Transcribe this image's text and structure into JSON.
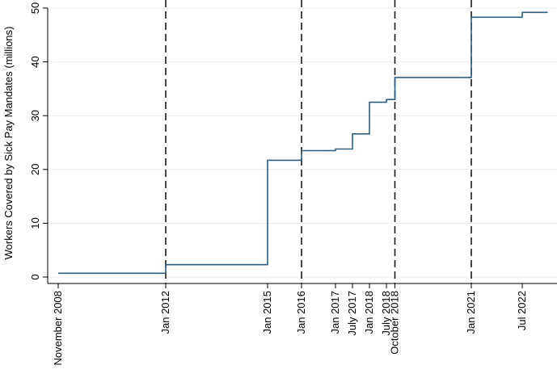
{
  "chart_data": {
    "type": "line",
    "ylabel": "Workers Covered by Sick Pay Mandates (millions)",
    "xlabel": "",
    "ylim": [
      0,
      50
    ],
    "y_ticks": [
      0,
      10,
      20,
      30,
      40,
      50
    ],
    "grid": "horizontal",
    "line_color": "#2e5f7f",
    "x_range": [
      "2008-10",
      "2023-04"
    ],
    "x_ticks": [
      {
        "label": "November 2008",
        "date": "2008-11"
      },
      {
        "label": "Jan 2012",
        "date": "2012-01"
      },
      {
        "label": "Jan 2015",
        "date": "2015-01"
      },
      {
        "label": "Jan 2016",
        "date": "2016-01"
      },
      {
        "label": "Jan 2017",
        "date": "2017-01"
      },
      {
        "label": "July 2017",
        "date": "2017-07"
      },
      {
        "label": "Jan 2018",
        "date": "2018-01"
      },
      {
        "label": "July 2018",
        "date": "2018-07"
      },
      {
        "label": "October 2018",
        "date": "2018-10"
      },
      {
        "label": "Jan 2021",
        "date": "2021-01"
      },
      {
        "label": "Jul 2022",
        "date": "2022-07"
      }
    ],
    "vertical_lines": [
      "2012-01",
      "2016-01",
      "2018-10",
      "2021-01"
    ],
    "series": [
      {
        "type": "step",
        "points": [
          {
            "x": "2008-11",
            "y": 0.7
          },
          {
            "x": "2012-01",
            "y": 2.3
          },
          {
            "x": "2015-01",
            "y": 21.7
          },
          {
            "x": "2016-01",
            "y": 23.5
          },
          {
            "x": "2017-01",
            "y": 23.8
          },
          {
            "x": "2017-07",
            "y": 26.6
          },
          {
            "x": "2018-01",
            "y": 32.5
          },
          {
            "x": "2018-07",
            "y": 33.0
          },
          {
            "x": "2018-10",
            "y": 37.1
          },
          {
            "x": "2021-01",
            "y": 48.3
          },
          {
            "x": "2022-07",
            "y": 49.2
          },
          {
            "x": "2023-04",
            "y": 49.2
          }
        ]
      }
    ]
  }
}
